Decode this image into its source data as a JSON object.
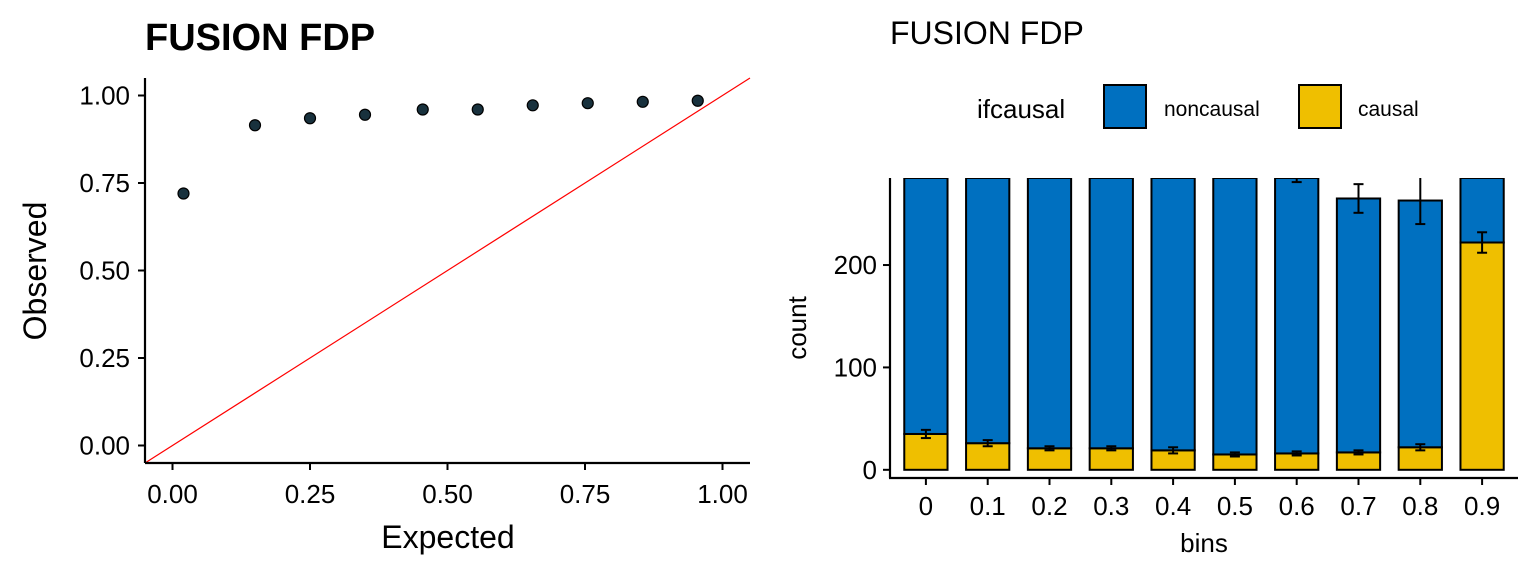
{
  "chart_data": [
    {
      "type": "scatter",
      "title": "FUSION FDP",
      "xlabel": "Expected",
      "ylabel": "Observed",
      "xlim": [
        -0.05,
        1.05
      ],
      "ylim": [
        -0.05,
        1.05
      ],
      "x_ticks": [
        "0.00",
        "0.25",
        "0.50",
        "0.75",
        "1.00"
      ],
      "y_ticks": [
        "0.00",
        "0.25",
        "0.50",
        "0.75",
        "1.00"
      ],
      "reference_line": "y = x",
      "colors": {
        "point_fill": "#18313d",
        "point_stroke": "#000000",
        "reference_line": "#ff0000"
      },
      "grid": false,
      "x": [
        0.02,
        0.15,
        0.25,
        0.35,
        0.455,
        0.555,
        0.655,
        0.755,
        0.855,
        0.955
      ],
      "y": [
        0.72,
        0.915,
        0.935,
        0.945,
        0.96,
        0.96,
        0.972,
        0.978,
        0.982,
        0.985
      ]
    },
    {
      "type": "bar",
      "stacked": true,
      "title": "FUSION FDP",
      "xlabel": "bins",
      "ylabel": "count",
      "legend": {
        "title": "ifcausal",
        "position": "top",
        "entries": [
          "noncausal",
          "causal"
        ]
      },
      "categories": [
        "0",
        "0.1",
        "0.2",
        "0.3",
        "0.4",
        "0.5",
        "0.6",
        "0.7",
        "0.8",
        "0.9"
      ],
      "y_ticks": [
        "0",
        "100",
        "200"
      ],
      "ylim": [
        -8,
        285
      ],
      "grid": false,
      "series": [
        {
          "name": "causal",
          "color": "#efbf00",
          "values": [
            35,
            26,
            21,
            21,
            19,
            15,
            16,
            17,
            22,
            222
          ],
          "error": [
            4,
            3,
            2,
            2,
            3,
            2,
            2,
            2,
            3,
            10
          ]
        },
        {
          "name": "noncausal",
          "color": "#0070c0",
          "values": [
            250,
            259,
            264,
            264,
            266,
            270,
            269,
            248,
            241,
            63
          ],
          "error": [
            null,
            null,
            null,
            null,
            null,
            null,
            4,
            14,
            23,
            null
          ]
        }
      ]
    }
  ]
}
